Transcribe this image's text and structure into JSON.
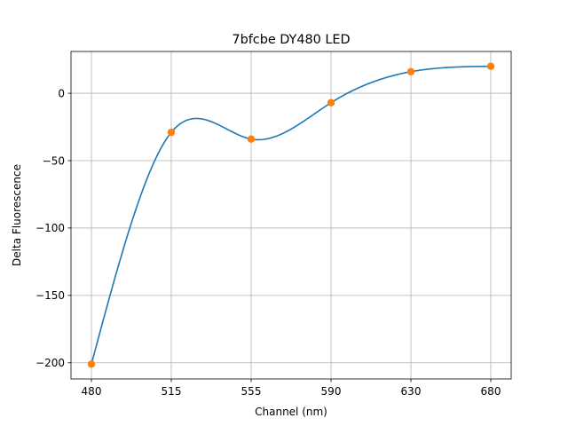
{
  "chart_data": {
    "type": "line",
    "title": "7bfcbe DY480 LED",
    "xlabel": "Channel (nm)",
    "ylabel": "Delta Fluorescence",
    "categories": [
      "480",
      "515",
      "555",
      "590",
      "630",
      "680"
    ],
    "series": [
      {
        "values": [
          -201,
          -29,
          -34,
          -7,
          16,
          20
        ],
        "line_color": "#1f77b4",
        "marker_color": "#ff7f0e"
      }
    ],
    "y_ticks": [
      0,
      -50,
      -100,
      -150,
      -200
    ],
    "y_tick_labels": [
      "0",
      "−50",
      "−100",
      "−150",
      "−200"
    ],
    "ylim": [
      -212,
      31
    ],
    "grid": true,
    "legend": "none"
  }
}
